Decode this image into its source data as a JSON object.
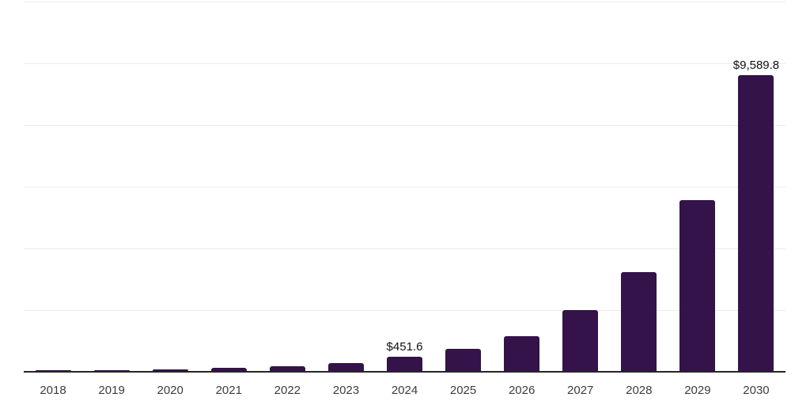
{
  "chart_data": {
    "type": "bar",
    "title": "",
    "xlabel": "",
    "ylabel": "",
    "categories": [
      "2018",
      "2019",
      "2020",
      "2021",
      "2022",
      "2023",
      "2024",
      "2025",
      "2026",
      "2027",
      "2028",
      "2029",
      "2030"
    ],
    "values": [
      20,
      33,
      55,
      92,
      157,
      250,
      451.6,
      720,
      1140,
      1985,
      3210,
      5530,
      9589.8
    ],
    "value_labels": [
      "",
      "",
      "",
      "",
      "",
      "",
      "$451.6",
      "",
      "",
      "",
      "",
      "",
      "$9,589.8"
    ],
    "ylim": [
      0,
      12000
    ],
    "grid_step": 2000,
    "grid": "horizontal",
    "legend": false,
    "colors": {
      "bar": "#34124a",
      "gridline": "#ececec",
      "axis": "#262626",
      "tick_label": "#3d3d3d",
      "value_label": "#111111",
      "background": "#ffffff"
    }
  }
}
